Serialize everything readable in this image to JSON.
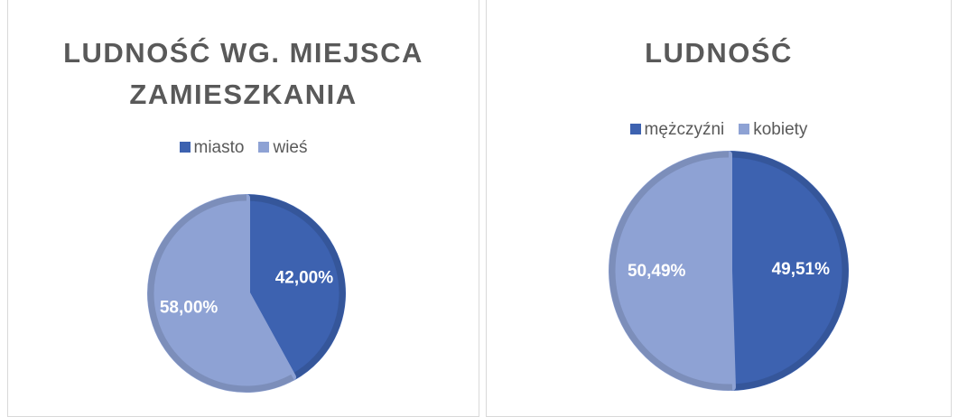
{
  "chart_data": [
    {
      "type": "pie",
      "title": "LUDNOŚĆ WG. MIEJSCA ZAMIESZKANIA",
      "categories": [
        "miasto",
        "wieś"
      ],
      "values": [
        42,
        58
      ],
      "value_labels": [
        "42,00%",
        "58,00%"
      ],
      "colors": [
        "#3d62b0",
        "#8ea2d4"
      ]
    },
    {
      "type": "pie",
      "title": "LUDNOŚĆ",
      "categories": [
        "mężczyźni",
        "kobiety"
      ],
      "values": [
        49.51,
        50.49
      ],
      "value_labels": [
        "49,51%",
        "50,49%"
      ],
      "colors": [
        "#3d62b0",
        "#8ea2d4"
      ]
    }
  ]
}
